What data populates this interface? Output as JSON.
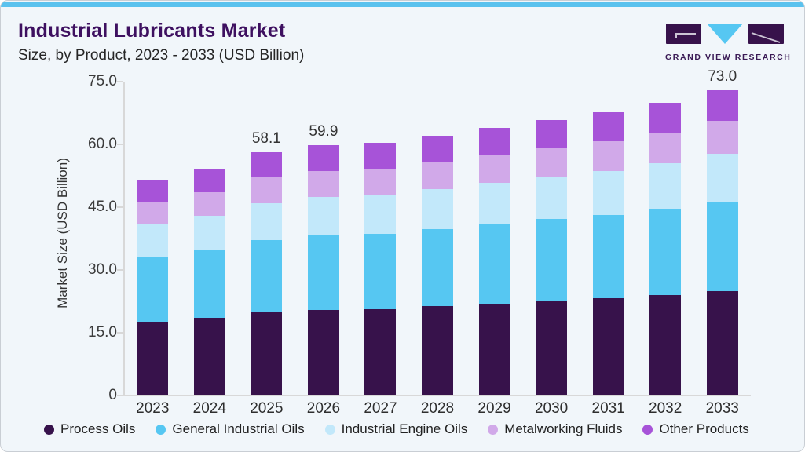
{
  "header": {
    "title": "Industrial Lubricants Market",
    "subtitle": "Size, by Product, 2023 - 2033 (USD Billion)"
  },
  "logo": {
    "brand": "GRAND VIEW RESEARCH"
  },
  "colors": {
    "accent_bar": "#5BC2EE",
    "card_background": "#F1F6FA",
    "title_text": "#3E1060",
    "axis_line": "#D8D8D8",
    "tick_text": "#3C3C3C"
  },
  "chart_data": {
    "type": "bar",
    "stacked": true,
    "title": "Industrial Lubricants Market Size, by Product, 2023 - 2033 (USD Billion)",
    "xlabel": "",
    "ylabel": "Market Size (USD Billion)",
    "ylim": [
      0,
      75
    ],
    "grid": false,
    "legend_position": "bottom",
    "yticks": [
      {
        "value": 75,
        "label": "75.0"
      },
      {
        "value": 60,
        "label": "60.0"
      },
      {
        "value": 45,
        "label": "45.0"
      },
      {
        "value": 30,
        "label": "30.0"
      },
      {
        "value": 15,
        "label": "15.0"
      },
      {
        "value": 0,
        "label": "0"
      }
    ],
    "categories": [
      "2023",
      "2024",
      "2025",
      "2026",
      "2027",
      "2028",
      "2029",
      "2030",
      "2031",
      "2032",
      "2033"
    ],
    "series": [
      {
        "name": "Process Oils",
        "color": "#37124B",
        "values": [
          17.7,
          18.6,
          19.9,
          20.5,
          20.7,
          21.3,
          22.0,
          22.6,
          23.2,
          24.0,
          25.0
        ]
      },
      {
        "name": "General Industrial Oils",
        "color": "#56C7F2",
        "values": [
          15.3,
          16.0,
          17.2,
          17.7,
          17.9,
          18.4,
          18.9,
          19.5,
          20.0,
          20.7,
          21.2
        ]
      },
      {
        "name": "Industrial Engine Oils",
        "color": "#C2E8FA",
        "values": [
          7.9,
          8.3,
          8.9,
          9.2,
          9.3,
          9.6,
          9.9,
          10.1,
          10.4,
          10.8,
          11.6
        ]
      },
      {
        "name": "Metalworking Fluids",
        "color": "#D1A9E9",
        "values": [
          5.4,
          5.7,
          6.1,
          6.3,
          6.3,
          6.5,
          6.7,
          6.9,
          7.1,
          7.3,
          7.9
        ]
      },
      {
        "name": "Other Products",
        "color": "#A753D8",
        "values": [
          5.3,
          5.6,
          6.0,
          6.2,
          6.1,
          6.3,
          6.5,
          6.8,
          7.0,
          7.2,
          7.3
        ]
      }
    ],
    "totals": [
      51.6,
      54.2,
      58.1,
      59.9,
      60.3,
      62.1,
      64.0,
      65.9,
      67.7,
      70.0,
      73.0
    ],
    "bar_value_labels": [
      null,
      null,
      "58.1",
      "59.9",
      null,
      null,
      null,
      null,
      null,
      null,
      "73.0"
    ]
  }
}
